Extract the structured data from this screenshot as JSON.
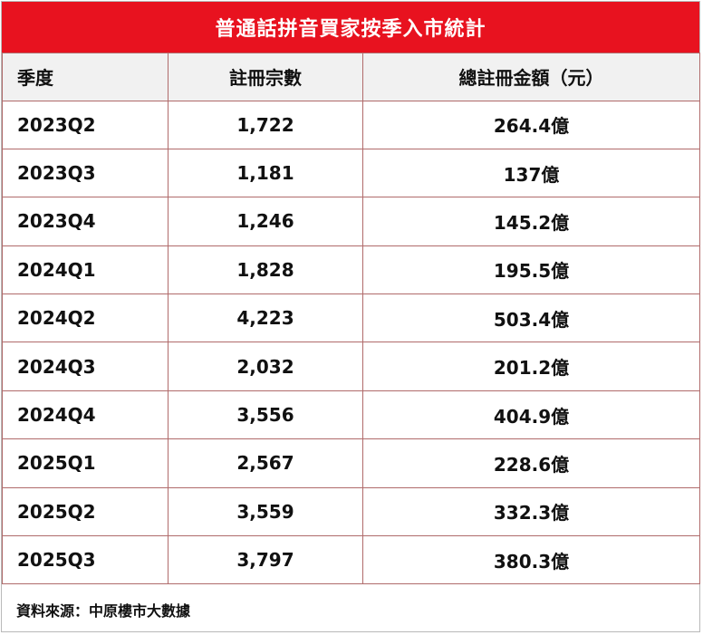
{
  "title": "普通話拼音買家按季入市統計",
  "colors": {
    "title_bar": "#e8121f",
    "header_bg": "#f1f1f1",
    "grid_lines": "#b06b6b"
  },
  "table": {
    "headers": [
      "季度",
      "註冊宗數",
      "總註冊金額（元）"
    ],
    "rows": [
      [
        "2023Q2",
        "1,722",
        "264.4億"
      ],
      [
        "2023Q3",
        "1,181",
        "137億"
      ],
      [
        "2023Q4",
        "1,246",
        "145.2億"
      ],
      [
        "2024Q1",
        "1,828",
        "195.5億"
      ],
      [
        "2024Q2",
        "4,223",
        "503.4億"
      ],
      [
        "2024Q3",
        "2,032",
        "201.2億"
      ],
      [
        "2024Q4",
        "3,556",
        "404.9億"
      ],
      [
        "2025Q1",
        "2,567",
        "228.6億"
      ],
      [
        "2025Q2",
        "3,559",
        "332.3億"
      ],
      [
        "2025Q3",
        "3,797",
        "380.3億"
      ]
    ]
  },
  "source": "資料來源：中原樓市大數據"
}
